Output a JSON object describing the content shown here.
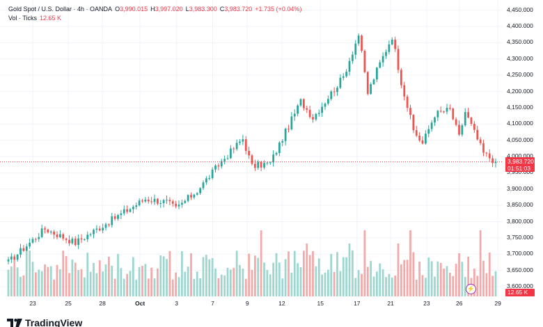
{
  "legend": {
    "symbol": "Gold Spot / U.S. Dollar · 4h · OANDA",
    "open_label": "O",
    "open": "3,990.015",
    "high_label": "H",
    "high": "3,997.020",
    "low_label": "L",
    "low": "3,983.300",
    "close_label": "C",
    "close": "3,983.720",
    "change": "+1.735 (+0.04%)",
    "vol_label": "Vol · Ticks",
    "vol_value": "12.65 K"
  },
  "price_axis": [
    "4,450.000",
    "4,400.000",
    "4,350.000",
    "4,300.000",
    "4,250.000",
    "4,200.000",
    "4,150.000",
    "4,100.000",
    "4,050.000",
    "4,000.000",
    "3,950.000",
    "3,900.000",
    "3,850.000",
    "3,800.000",
    "3,750.000",
    "3,700.000",
    "3,650.000",
    "3,600.000"
  ],
  "time_axis": [
    "23",
    "25",
    "28",
    "Oct",
    "3",
    "7",
    "9",
    "12",
    "15",
    "17",
    "21",
    "23",
    "26",
    "29"
  ],
  "last_price": {
    "price": "3,983.720",
    "countdown": "01:51:03"
  },
  "volume_tag": "12.65 K",
  "logo_text": "TradingView",
  "colors": {
    "up": "#26a69a",
    "down": "#ef5350",
    "vol_up": "#9dd6cf",
    "vol_down": "#f4a8a7",
    "last_price": "#f23645"
  },
  "chart_data": {
    "type": "candlestick",
    "interval": "4h",
    "y_range": [
      3600,
      4460
    ],
    "last_close": 3983.72,
    "x_range": [
      0,
      160
    ],
    "key_points": [
      {
        "x": 0,
        "price": 3675
      },
      {
        "x": 12,
        "price": 3778
      },
      {
        "x": 22,
        "price": 3735
      },
      {
        "x": 30,
        "price": 3782
      },
      {
        "x": 45,
        "price": 3870
      },
      {
        "x": 52,
        "price": 3860
      },
      {
        "x": 55,
        "price": 3840
      },
      {
        "x": 62,
        "price": 3895
      },
      {
        "x": 70,
        "price": 3985
      },
      {
        "x": 77,
        "price": 4055
      },
      {
        "x": 80,
        "price": 3970
      },
      {
        "x": 86,
        "price": 3980
      },
      {
        "x": 96,
        "price": 4170
      },
      {
        "x": 100,
        "price": 4120
      },
      {
        "x": 110,
        "price": 4245
      },
      {
        "x": 115,
        "price": 4375
      },
      {
        "x": 118,
        "price": 4195
      },
      {
        "x": 121,
        "price": 4265
      },
      {
        "x": 126,
        "price": 4370
      },
      {
        "x": 129,
        "price": 4230
      },
      {
        "x": 133,
        "price": 4080
      },
      {
        "x": 136,
        "price": 4040
      },
      {
        "x": 140,
        "price": 4130
      },
      {
        "x": 145,
        "price": 4145
      },
      {
        "x": 148,
        "price": 4060
      },
      {
        "x": 150,
        "price": 4138
      },
      {
        "x": 156,
        "price": 4010
      },
      {
        "x": 160,
        "price": 3984
      }
    ]
  }
}
